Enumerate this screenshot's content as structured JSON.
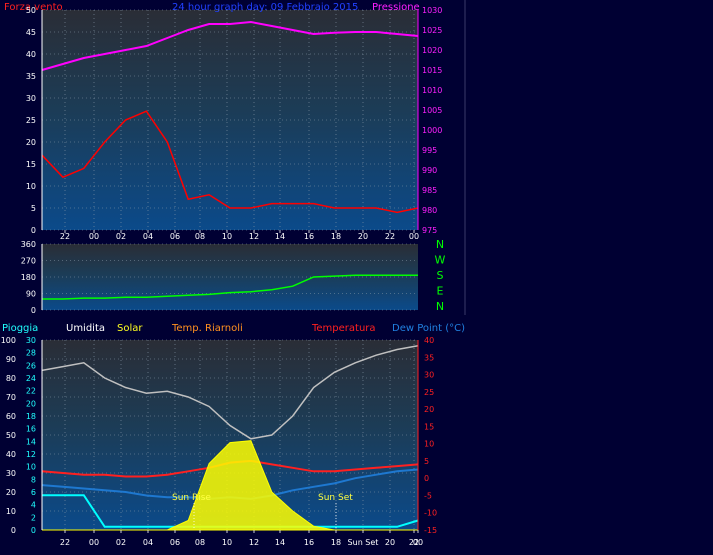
{
  "header": {
    "wind_label": "Forza vento",
    "title": "24 hour graph day: 09 Febbraio 2015",
    "pressure_label": "Pressione"
  },
  "bottom_header": {
    "rain_label": "Pioggia",
    "humidity_label": "Umidita",
    "solar_label": "Solar",
    "temp_label": "Temp. Riarnoli",
    "temperature_label": "Temperatura",
    "dewpoint_label": "Dew Point (°C)"
  },
  "annotations": {
    "sun_rise": "Sun Rise",
    "sun_set": "Sun Set"
  },
  "compass": [
    "N",
    "W",
    "S",
    "E",
    "N"
  ],
  "colors": {
    "background": "#000033",
    "wind_gust": "#ff0000",
    "wind_avg": "#ffffff",
    "wind_speed": "#008000",
    "pressure": "#ff00ff",
    "direction": "#00ff00",
    "humidity": "#c0c0c0",
    "solar": "#ffff00",
    "temperature": "#ff2020",
    "dewpoint": "#1e78d0",
    "rain": "#00ffff"
  },
  "chart_data": [
    {
      "type": "line",
      "name": "wind-pressure",
      "x_ticks": [
        "22",
        "00",
        "02",
        "04",
        "06",
        "08",
        "10",
        "12",
        "14",
        "16",
        "18",
        "20",
        "22",
        "00"
      ],
      "ylim_left": [
        0,
        50
      ],
      "yticks_left": [
        0,
        5,
        10,
        15,
        20,
        25,
        30,
        35,
        40,
        45,
        50
      ],
      "ylim_right": [
        975,
        1030
      ],
      "yticks_right": [
        975,
        980,
        985,
        990,
        995,
        1000,
        1005,
        1010,
        1015,
        1020,
        1025,
        1030
      ],
      "series": [
        {
          "name": "Pressione",
          "axis": "right",
          "values": [
            1015,
            1016.5,
            1018,
            1019,
            1020,
            1021,
            1023,
            1025,
            1026.5,
            1026.5,
            1027,
            1026,
            1025,
            1024,
            1024.3,
            1024.5,
            1024.5,
            1024,
            1023.5
          ]
        },
        {
          "name": "Forza vento",
          "axis": "left",
          "values": [
            17,
            12,
            14,
            20,
            25,
            27,
            20,
            7,
            8,
            5,
            5,
            6,
            6,
            6,
            5,
            5,
            5,
            4,
            5
          ]
        }
      ]
    },
    {
      "type": "line",
      "name": "wind-direction",
      "x_ticks": [
        "22",
        "00",
        "02",
        "04",
        "06",
        "08",
        "10",
        "12",
        "14",
        "16",
        "18",
        "20",
        "22",
        "00"
      ],
      "ylim": [
        0,
        360
      ],
      "yticks": [
        0,
        90,
        180,
        270,
        360
      ],
      "series": [
        {
          "name": "direction",
          "values": [
            60,
            60,
            65,
            65,
            70,
            70,
            75,
            80,
            85,
            95,
            100,
            110,
            130,
            180,
            185,
            190,
            190,
            190,
            190
          ]
        }
      ]
    },
    {
      "type": "line",
      "name": "temperature-humidity",
      "x_ticks": [
        "22",
        "00",
        "02",
        "04",
        "06",
        "08",
        "10",
        "12",
        "14",
        "16",
        "18",
        "Sun Set",
        "20",
        "22",
        "00"
      ],
      "ylim_humidity": [
        0,
        100
      ],
      "yticks_humidity": [
        0,
        10,
        20,
        30,
        40,
        50,
        60,
        70,
        80,
        90,
        100
      ],
      "ylim_rain": [
        0,
        30
      ],
      "yticks_rain": [
        0,
        2,
        4,
        6,
        8,
        10,
        12,
        14,
        16,
        18,
        20,
        22,
        24,
        26,
        28,
        30
      ],
      "ylim_temp": [
        -15,
        40
      ],
      "yticks_temp": [
        -15,
        -10,
        -5,
        0,
        5,
        10,
        15,
        20,
        25,
        30,
        35,
        40
      ],
      "series": [
        {
          "name": "Umidita",
          "axis": "humidity",
          "values": [
            84,
            86,
            88,
            80,
            75,
            72,
            73,
            70,
            65,
            55,
            48,
            50,
            60,
            75,
            83,
            88,
            92,
            95,
            97
          ]
        },
        {
          "name": "Temperatura",
          "axis": "temp",
          "values": [
            2,
            1.5,
            1,
            1,
            0.5,
            0.5,
            1,
            2,
            3,
            4.5,
            5,
            4,
            3,
            2,
            2,
            2.5,
            3,
            3.5,
            4
          ]
        },
        {
          "name": "Dew Point",
          "axis": "temp",
          "values": [
            -2,
            -2.5,
            -3,
            -3.5,
            -4,
            -5,
            -5.5,
            -5.5,
            -6,
            -5.5,
            -6,
            -5,
            -3.5,
            -2.5,
            -1.5,
            0,
            1,
            2,
            2.5
          ]
        },
        {
          "name": "Pioggia",
          "axis": "rain",
          "values": [
            5.5,
            5.5,
            5.5,
            0.5,
            0.5,
            0.5,
            0.5,
            0.5,
            0.5,
            0.5,
            0.5,
            0.5,
            0.5,
            0.5,
            0.5,
            0.5,
            0.5,
            0.5,
            1.5
          ]
        },
        {
          "name": "Solar",
          "axis": "humidity",
          "values": [
            0,
            0,
            0,
            0,
            0,
            0,
            0,
            5,
            35,
            46,
            47,
            20,
            10,
            2,
            0,
            0,
            0,
            0,
            0
          ]
        }
      ]
    }
  ]
}
